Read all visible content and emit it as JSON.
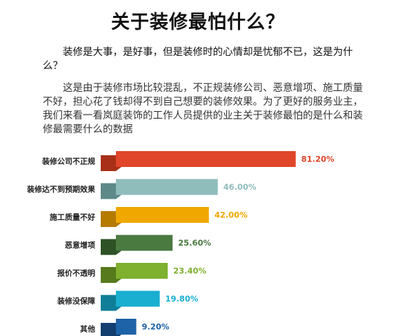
{
  "title": "关于装修最怕什么？",
  "paragraph1": "装修是大事，是好事，但是装修时的心情却是忧郁不已，这是为什么？",
  "paragraph2": "这是由于装修市场比较混乱，不正规装修公司、恶意增项、施工质量不好，担心花了钱却得不到自己想要的装修效果。为了更好的服务业主，我们来看一看岚庭装饰的工作人员提供的业主关于装修最怕的是什么和装修最需要什么的数据",
  "chart_data": {
    "type": "bar",
    "orientation": "horizontal",
    "unit": "%",
    "categories": [
      "装修公司不正规",
      "装修达不到预期效果",
      "施工质量不好",
      "恶意增项",
      "报价不透明",
      "装修没保障",
      "其他"
    ],
    "values": [
      81.2,
      46.0,
      42.0,
      25.6,
      23.4,
      19.8,
      9.2
    ],
    "value_labels": [
      "81.20%",
      "46.00%",
      "42.00%",
      "25.60%",
      "23.40%",
      "19.80%",
      "9.20%"
    ],
    "colors": [
      "#e0462a",
      "#8fbdbc",
      "#f0a800",
      "#4a7a40",
      "#7fb02e",
      "#1aaed0",
      "#1e62a8"
    ],
    "shadow_colors": [
      "#a83018",
      "#5e8a89",
      "#b57a00",
      "#2e5226",
      "#567a1c",
      "#107e98",
      "#123f70"
    ],
    "grid": false,
    "legend": "none"
  }
}
